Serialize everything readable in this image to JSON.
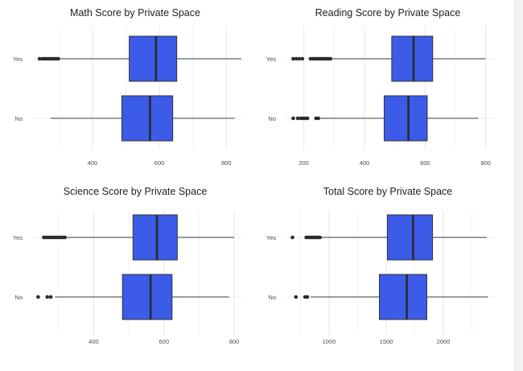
{
  "chart_data": [
    {
      "type": "box",
      "title": "Math Score by Private Space",
      "categories": [
        "Yes",
        "No"
      ],
      "xticks": [
        400,
        600,
        800
      ],
      "xlim": [
        220,
        850
      ],
      "color": "#3b5be8",
      "series": [
        {
          "category": "Yes",
          "whisker_low": 300,
          "q1": 510,
          "median": 590,
          "q3": 652,
          "whisker_high": 845,
          "outliers": [
            242,
            250,
            256,
            262,
            268,
            274,
            280,
            286,
            292,
            298
          ]
        },
        {
          "category": "No",
          "whisker_low": 275,
          "q1": 488,
          "median": 572,
          "q3": 640,
          "whisker_high": 825,
          "outliers": []
        }
      ]
    },
    {
      "type": "box",
      "title": "Reading Score by Private Space",
      "categories": [
        "Yes",
        "No"
      ],
      "xticks": [
        200,
        400,
        600,
        800
      ],
      "xlim": [
        140,
        830
      ],
      "color": "#3b5be8",
      "series": [
        {
          "category": "Yes",
          "whisker_low": 290,
          "q1": 490,
          "median": 562,
          "q3": 625,
          "whisker_high": 800,
          "outliers": [
            165,
            175,
            185,
            195,
            222,
            230,
            238,
            245,
            252,
            258,
            264,
            270,
            276,
            282,
            288
          ]
        },
        {
          "category": "No",
          "whisker_low": 252,
          "q1": 465,
          "median": 545,
          "q3": 607,
          "whisker_high": 775,
          "outliers": [
            165,
            180,
            190,
            198,
            205,
            212,
            240,
            248
          ]
        }
      ]
    },
    {
      "type": "box",
      "title": "Science Score by Private Space",
      "categories": [
        "Yes",
        "No"
      ],
      "xticks": [
        400,
        600,
        800
      ],
      "xlim": [
        225,
        825
      ],
      "color": "#3b5be8",
      "series": [
        {
          "category": "Yes",
          "whisker_low": 320,
          "q1": 512,
          "median": 580,
          "q3": 638,
          "whisker_high": 800,
          "outliers": [
            258,
            264,
            270,
            276,
            282,
            288,
            294,
            300,
            306,
            312,
            318
          ]
        },
        {
          "category": "No",
          "whisker_low": 290,
          "q1": 482,
          "median": 562,
          "q3": 623,
          "whisker_high": 785,
          "outliers": [
            242,
            268,
            278
          ]
        }
      ]
    },
    {
      "type": "box",
      "title": "Total Score by Private Space",
      "categories": [
        "Yes",
        "No"
      ],
      "xticks": [
        1000,
        1500,
        2000
      ],
      "xlim": [
        620,
        2450
      ],
      "color": "#3b5be8",
      "series": [
        {
          "category": "Yes",
          "whisker_low": 930,
          "q1": 1510,
          "median": 1735,
          "q3": 1905,
          "whisker_high": 2380,
          "outliers": [
            680,
            800,
            815,
            830,
            845,
            860,
            875,
            890,
            905,
            920
          ]
        },
        {
          "category": "No",
          "whisker_low": 840,
          "q1": 1440,
          "median": 1680,
          "q3": 1855,
          "whisker_high": 2390,
          "outliers": [
            710,
            790,
            810
          ]
        }
      ]
    }
  ]
}
